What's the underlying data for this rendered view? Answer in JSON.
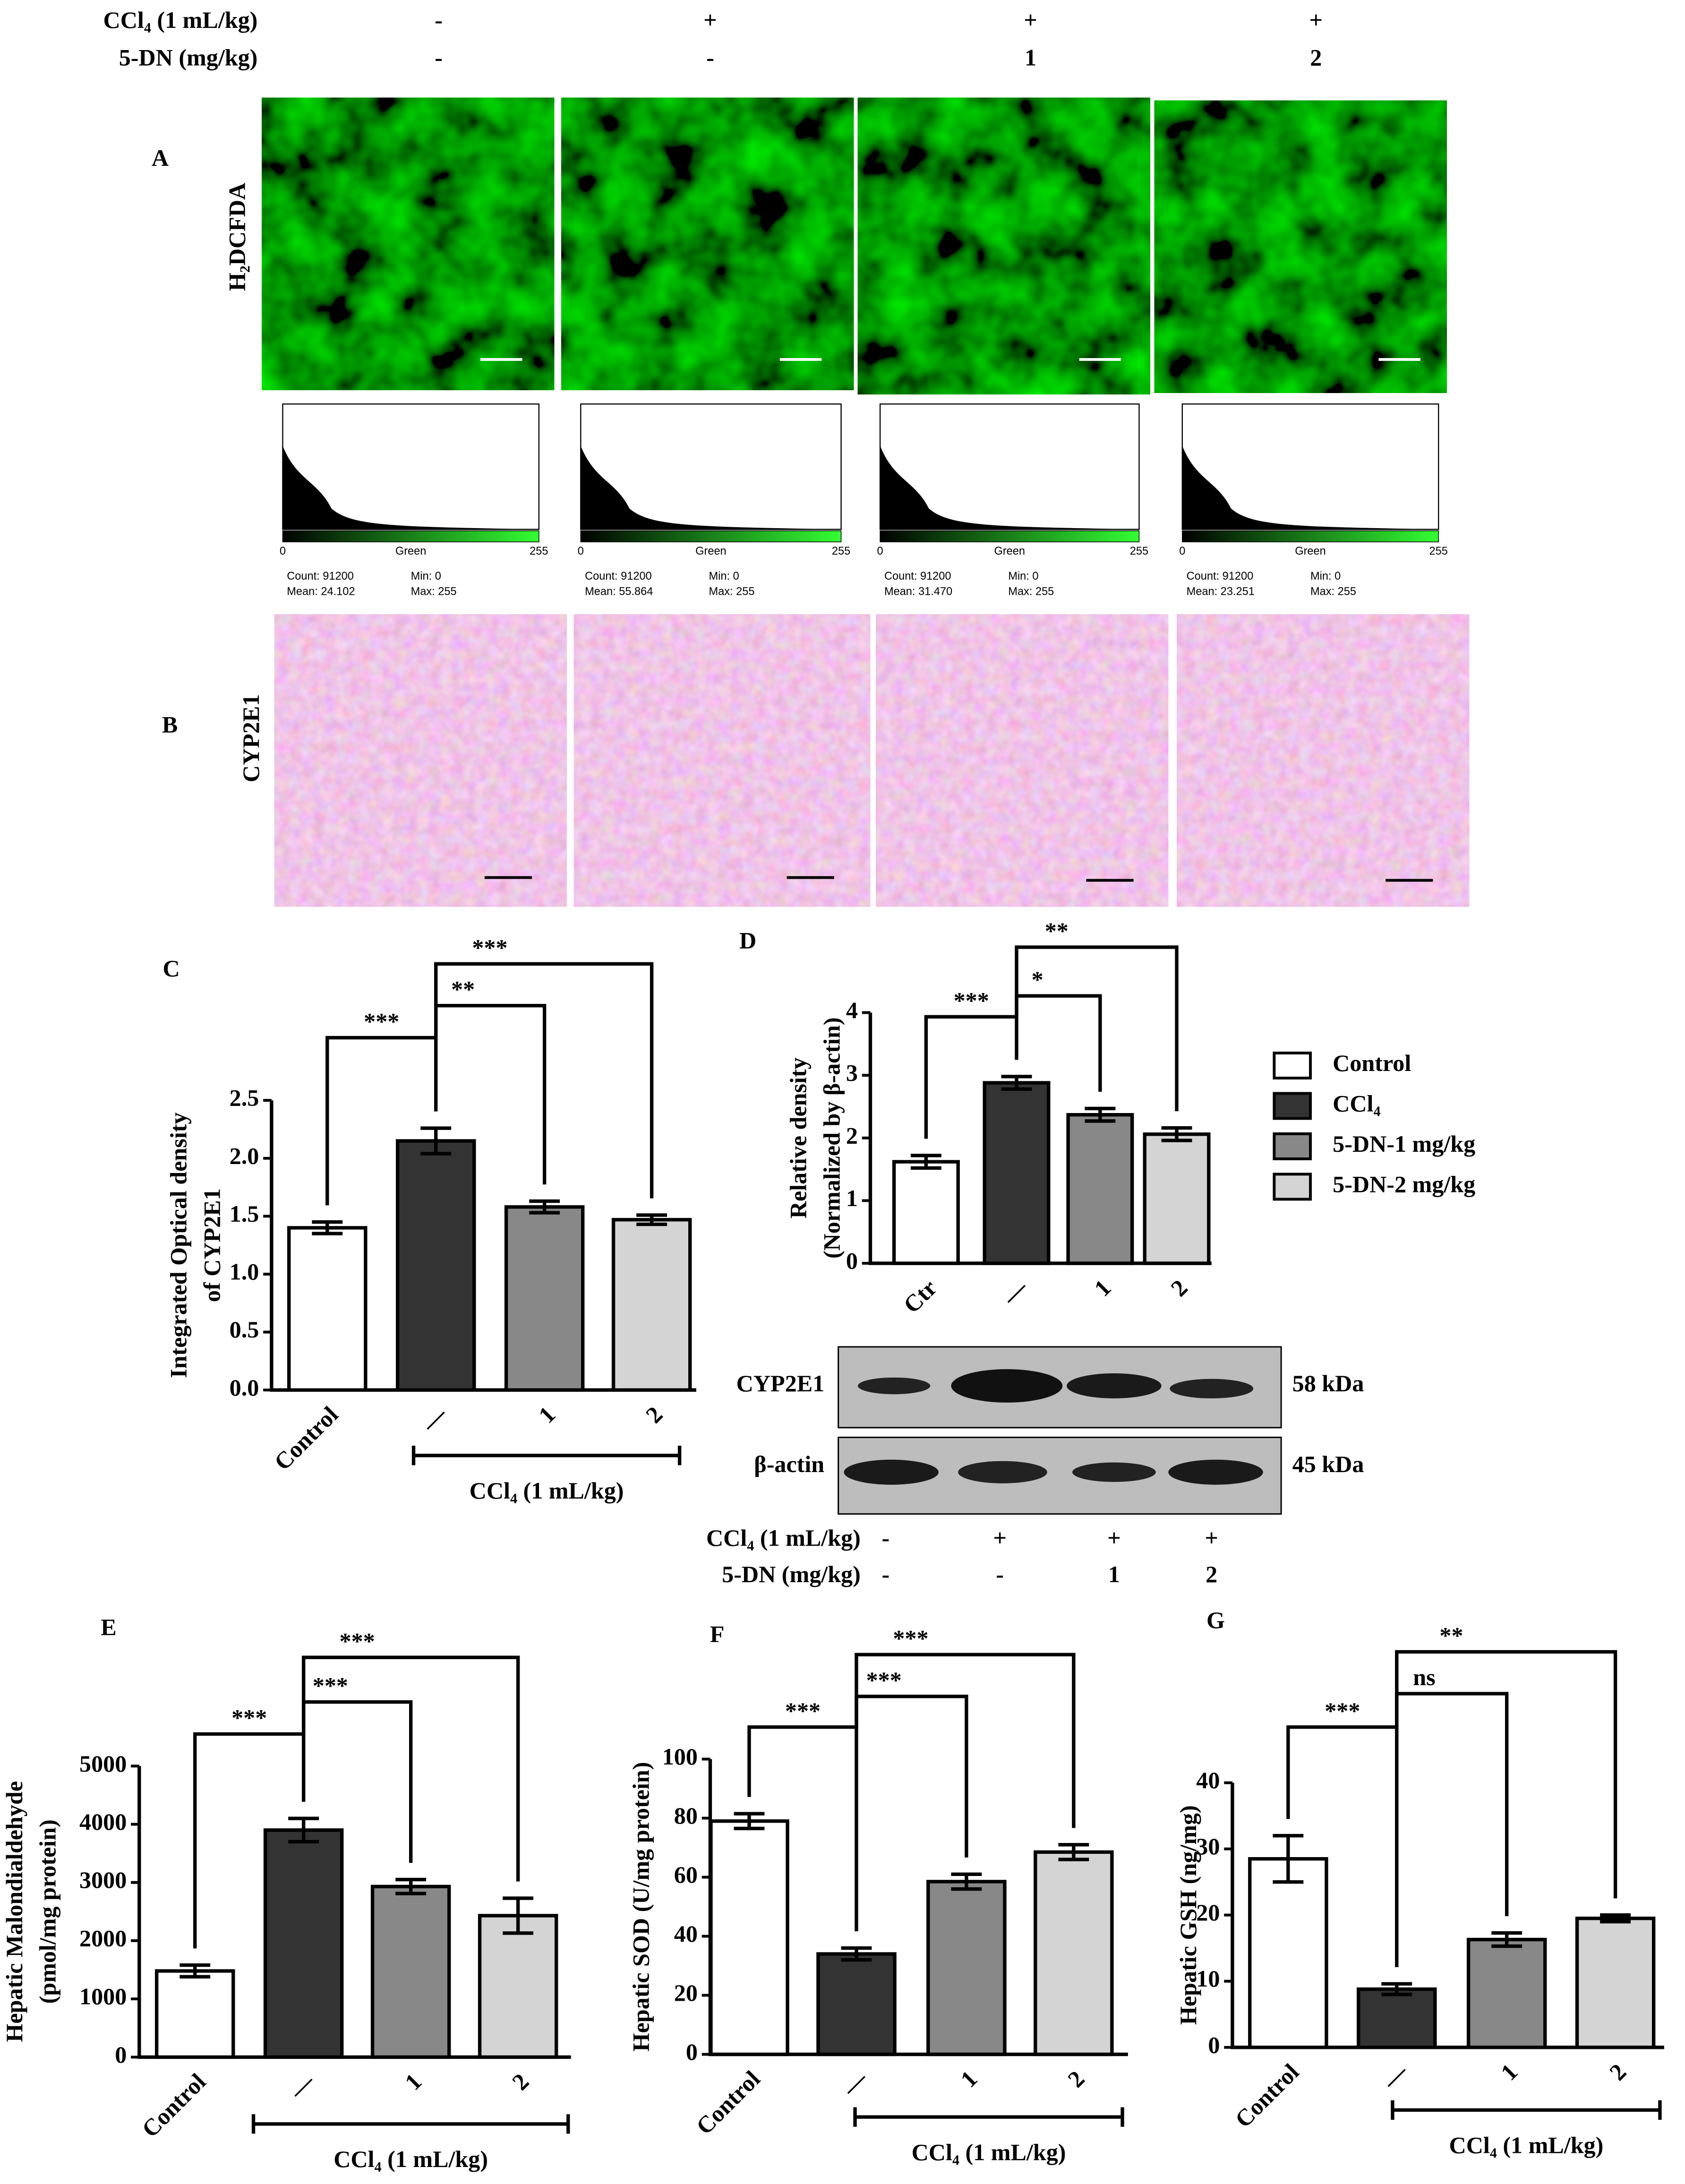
{
  "header": {
    "rows": [
      {
        "label": "CCl₄ (1 mL/kg)",
        "values": [
          "-",
          "+",
          "+",
          "+"
        ]
      },
      {
        "label": "5-DN (mg/kg)",
        "values": [
          "-",
          "-",
          "1",
          "2"
        ]
      }
    ]
  },
  "panel_a": {
    "letter": "A",
    "stain": "H₂DCFDA",
    "histograms": [
      {
        "axis": [
          "0",
          "Green",
          "255"
        ],
        "count": "Count: 91200",
        "mean": "Mean: 24.102",
        "min": "Min: 0",
        "max": "Max: 255"
      },
      {
        "axis": [
          "0",
          "Green",
          "255"
        ],
        "count": "Count: 91200",
        "mean": "Mean: 55.864",
        "min": "Min: 0",
        "max": "Max: 255"
      },
      {
        "axis": [
          "0",
          "Green",
          "255"
        ],
        "count": "Count: 91200",
        "mean": "Mean: 31.470",
        "min": "Min: 0",
        "max": "Max: 255"
      },
      {
        "axis": [
          "0",
          "Green",
          "255"
        ],
        "count": "Count: 91200",
        "mean": "Mean: 23.251",
        "min": "Min: 0",
        "max": "Max: 255"
      }
    ]
  },
  "panel_b": {
    "letter": "B",
    "stain": "CYP2E1"
  },
  "blot": {
    "bands": [
      {
        "label": "CYP2E1",
        "size": "58 kDa"
      },
      {
        "label": "β-actin",
        "size": "45 kDa"
      }
    ],
    "rows": [
      {
        "label": "CCl₄ (1 mL/kg)",
        "values": [
          "-",
          "+",
          "+",
          "+"
        ]
      },
      {
        "label": "5-DN (mg/kg)",
        "values": [
          "-",
          "-",
          "1",
          "2"
        ]
      }
    ]
  },
  "chart_data": [
    {
      "type": "bar",
      "panel": "C",
      "ylabel": [
        "Integrated Optical density",
        "of CYP2E1"
      ],
      "categories": [
        "Control",
        "—",
        "1",
        "2"
      ],
      "values": [
        1.4,
        2.15,
        1.58,
        1.47
      ],
      "errors": [
        0.05,
        0.11,
        0.05,
        0.04
      ],
      "colors": [
        "#ffffff",
        "#333333",
        "#888888",
        "#d4d4d4"
      ],
      "ylim": [
        0,
        2.5
      ],
      "yticks": [
        {
          "value": 0,
          "label": "0.0"
        },
        0.5,
        {
          "value": 1,
          "label": "1.0"
        },
        1.5,
        {
          "value": 2,
          "label": "2.0"
        },
        2.5
      ],
      "significance": [
        "***",
        "**",
        "***"
      ],
      "group": "CCl₄ (1 mL/kg)"
    },
    {
      "type": "bar",
      "panel": "D",
      "ylabel": [
        "Relative density",
        "(Normalized by β-actin)"
      ],
      "categories": [
        "Ctr",
        "—",
        "1",
        "2"
      ],
      "values": [
        1.62,
        2.88,
        2.37,
        2.06
      ],
      "errors": [
        0.1,
        0.1,
        0.1,
        0.1
      ],
      "colors": [
        "#ffffff",
        "#333333",
        "#888888",
        "#d4d4d4"
      ],
      "ylim": [
        0,
        4
      ],
      "yticks": [
        0,
        1,
        2,
        3,
        4
      ],
      "significance": [
        "***",
        "*",
        "**"
      ],
      "legend": [
        "Control",
        "CCl₄",
        "5-DN-1 mg/kg",
        "5-DN-2 mg/kg"
      ]
    },
    {
      "type": "bar",
      "panel": "E",
      "ylabel": [
        "Hepatic Malondialdehyde",
        "(pmol/mg protein)"
      ],
      "categories": [
        "Control",
        "—",
        "1",
        "2"
      ],
      "values": [
        1480,
        3900,
        2930,
        2430
      ],
      "errors": [
        100,
        200,
        120,
        300
      ],
      "colors": [
        "#ffffff",
        "#333333",
        "#888888",
        "#d4d4d4"
      ],
      "ylim": [
        0,
        5000
      ],
      "yticks": [
        0,
        1000,
        2000,
        3000,
        4000,
        5000
      ],
      "significance": [
        "***",
        "***",
        "***"
      ],
      "group": "CCl₄ (1 mL/kg)"
    },
    {
      "type": "bar",
      "panel": "F",
      "ylabel": [
        "Hepatic SOD (U/mg protein)"
      ],
      "categories": [
        "Control",
        "—",
        "1",
        "2"
      ],
      "values": [
        79,
        34,
        58.5,
        68.5
      ],
      "errors": [
        2.5,
        2,
        2.5,
        2.5
      ],
      "colors": [
        "#ffffff",
        "#333333",
        "#888888",
        "#d4d4d4"
      ],
      "ylim": [
        0,
        100
      ],
      "yticks": [
        0,
        20,
        40,
        60,
        80,
        100
      ],
      "significance": [
        "***",
        "***",
        "***"
      ],
      "group": "CCl₄ (1 mL/kg)"
    },
    {
      "type": "bar",
      "panel": "G",
      "ylabel": [
        "Hepatic GSH (ng/mg)"
      ],
      "categories": [
        "Control",
        "—",
        "1",
        "2"
      ],
      "values": [
        28.5,
        8.8,
        16.3,
        19.5
      ],
      "errors": [
        3.5,
        0.8,
        1,
        0.5
      ],
      "colors": [
        "#ffffff",
        "#333333",
        "#888888",
        "#d4d4d4"
      ],
      "ylim": [
        0,
        40
      ],
      "yticks": [
        0,
        10,
        20,
        30,
        40
      ],
      "significance": [
        "***",
        "ns",
        "**"
      ],
      "group": "CCl₄ (1 mL/kg)"
    }
  ]
}
